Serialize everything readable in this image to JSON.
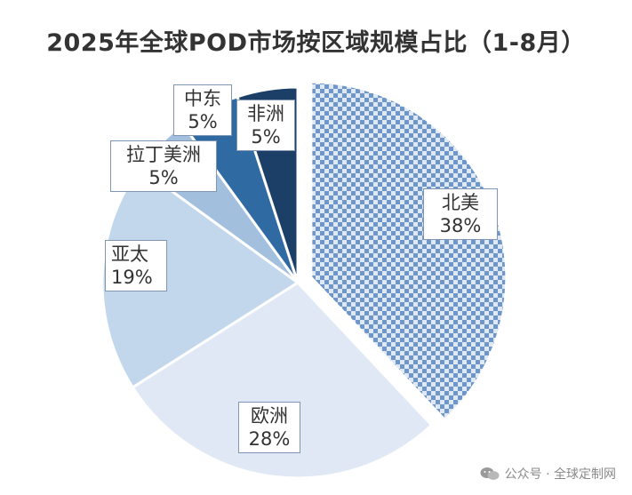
{
  "chart_data": {
    "type": "pie",
    "title": "2025年全球POD市场按区域规模占比（1-8月）",
    "slices": [
      {
        "name": "北美",
        "value": 38,
        "label": "38%",
        "exploded": true,
        "pattern": "checker",
        "color": "#8fb0d8"
      },
      {
        "name": "欧洲",
        "value": 28,
        "label": "28%",
        "color": "#dfe8f4"
      },
      {
        "name": "亚太",
        "value": 19,
        "label": "19%",
        "color": "#c3d7ec"
      },
      {
        "name": "拉丁美洲",
        "value": 5,
        "label": "5%",
        "color": "#a3bfde"
      },
      {
        "name": "中东",
        "value": 5,
        "label": "5%",
        "color": "#2f6aa3"
      },
      {
        "name": "非洲",
        "value": 5,
        "label": "5%",
        "color": "#1b3f66"
      }
    ],
    "legend": "none"
  },
  "watermark": {
    "text": "公众号 · 全球定制网",
    "icon": "wechat-icon"
  }
}
